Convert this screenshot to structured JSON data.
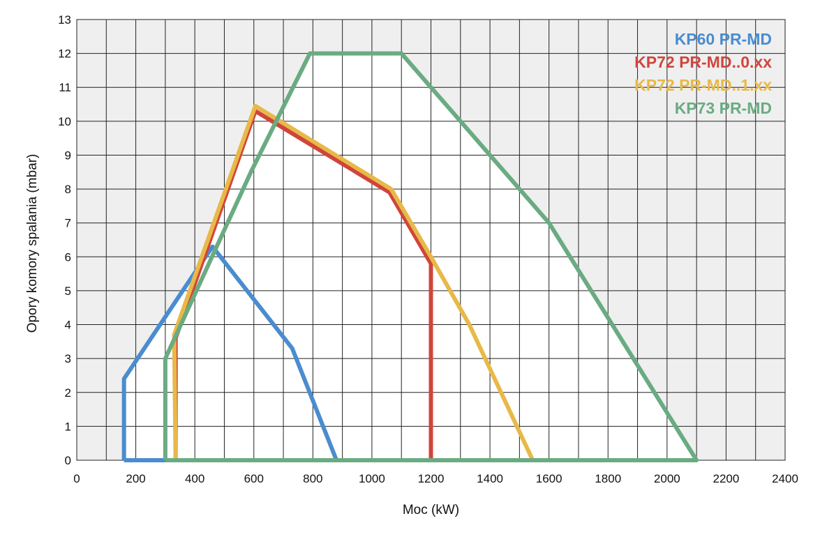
{
  "chart_data": {
    "type": "line",
    "title": "",
    "xlabel": "Moc (kW)",
    "ylabel": "Opory komory spalania (mbar)",
    "xlim": [
      0,
      2400
    ],
    "ylim": [
      0,
      13
    ],
    "xticks": [
      0,
      200,
      400,
      600,
      800,
      1000,
      1200,
      1400,
      1600,
      1800,
      2000,
      2200,
      2400
    ],
    "yticks": [
      0,
      1,
      2,
      3,
      4,
      5,
      6,
      7,
      8,
      9,
      10,
      11,
      12,
      13
    ],
    "grid": true,
    "legend_position": "top-right",
    "background_shading": "gray outside working fields, white inside",
    "series": [
      {
        "name": "KP60 PR-MD",
        "color": "#4a8ccf",
        "x": [
          160,
          160,
          405,
          460,
          730,
          880,
          160
        ],
        "y": [
          0,
          2.4,
          5.6,
          6.3,
          3.3,
          0,
          0
        ]
      },
      {
        "name": "KP72 PR-MD..0.xx",
        "color": "#d0453b",
        "x": [
          335,
          335,
          605,
          1060,
          1200,
          1200
        ],
        "y": [
          0,
          3.6,
          10.3,
          7.9,
          5.8,
          0
        ]
      },
      {
        "name": "KP72 PR-MD..1.xx",
        "color": "#e8b948",
        "x": [
          335,
          330,
          605,
          1065,
          1200,
          1330,
          1545
        ],
        "y": [
          0,
          3.7,
          10.45,
          8.0,
          6.0,
          4.0,
          0
        ]
      },
      {
        "name": "KP73 PR-MD",
        "color": "#6aab82",
        "x": [
          300,
          300,
          590,
          790,
          1100,
          1600,
          2100,
          300
        ],
        "y": [
          0,
          3.0,
          8.5,
          12.0,
          12.0,
          7.0,
          0,
          0
        ]
      }
    ]
  }
}
